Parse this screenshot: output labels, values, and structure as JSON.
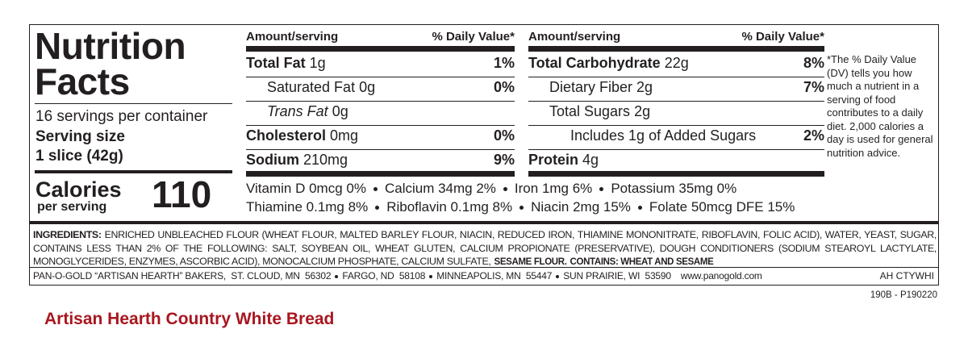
{
  "label": {
    "title_line1": "Nutrition",
    "title_line2": "Facts",
    "servings": "16 servings per container",
    "serving_size_label": "Serving size",
    "serving_size": "1 slice (42g)",
    "calories_label": "Calories",
    "calories_sub": "per serving",
    "calories": "110",
    "columns": [
      {
        "amount_header": "Amount/serving",
        "dv_header": "% Daily Value*",
        "rows": [
          {
            "name": "Total Fat",
            "amount": "1g",
            "dv": "1%",
            "bold": true,
            "indent": 0
          },
          {
            "name": "Saturated Fat",
            "amount": "0g",
            "dv": "0%",
            "bold": false,
            "indent": 1
          },
          {
            "name": "Trans Fat",
            "amount": "0g",
            "bold": false,
            "italic": true,
            "indent": 1
          },
          {
            "name": "Cholesterol",
            "amount": "0mg",
            "dv": "0%",
            "bold": true,
            "indent": 0
          },
          {
            "name": "Sodium",
            "amount": "210mg",
            "dv": "9%",
            "bold": true,
            "indent": 0
          }
        ]
      },
      {
        "amount_header": "Amount/serving",
        "dv_header": "% Daily Value*",
        "rows": [
          {
            "name": "Total Carbohydrate",
            "amount": "22g",
            "dv": "8%",
            "bold": true,
            "indent": 0
          },
          {
            "name": "Dietary Fiber",
            "amount": "2g",
            "dv": "7%",
            "bold": false,
            "indent": 1
          },
          {
            "name": "Total Sugars",
            "amount": "2g",
            "bold": false,
            "indent": 1
          },
          {
            "name": "Includes 1g of Added Sugars",
            "dv": "2%",
            "bold": false,
            "indent": 2
          },
          {
            "name": "Protein",
            "amount": "4g",
            "bold": true,
            "indent": 0
          }
        ]
      }
    ],
    "vitamins": [
      [
        "Vitamin D 0mcg 0%",
        "Calcium 34mg 2%",
        "Iron 1mg 6%",
        "Potassium 35mg 0%"
      ],
      [
        "Thiamine 0.1mg 8%",
        "Riboflavin 0.1mg 8%",
        "Niacin 2mg 15%",
        "Folate 50mcg DFE 15%"
      ]
    ],
    "footnote": "*The % Daily Value (DV) tells you how much a nutrient in a serving of food contributes to a daily diet. 2,000 calories a day is used for general nutrition advice."
  },
  "ingredients": {
    "label": "INGREDIENTS:",
    "text": "ENRICHED UNBLEACHED FLOUR (WHEAT FLOUR, MALTED BARLEY FLOUR, NIACIN, REDUCED IRON, THIAMINE MONONITRATE, RIBOFLAVIN, FOLIC ACID), WATER, YEAST, SUGAR, CONTAINS LESS THAN 2% OF THE FOLLOWING: SALT, SOYBEAN OIL, WHEAT GLUTEN, CALCIUM PROPIONATE (PRESERVATIVE), DOUGH CONDITIONERS (SODIUM STEAROYL LACTYLATE, MONOGLYCERIDES, ENZYMES, ASCORBIC ACID), MONOCALCIUM PHOSPHATE, CALCIUM SULFATE,",
    "sesame": "SESAME FLOUR.",
    "contains": "CONTAINS: WHEAT AND SESAME"
  },
  "manufacturer": {
    "segments": [
      "PAN-O-GOLD “ARTISAN HEARTH” BAKERS,  ST. CLOUD, MN  56302",
      "FARGO, ND  58108",
      "MINNEAPOLIS, MN  55447",
      "SUN PRAIRIE, WI  53590"
    ],
    "website": "www.panogold.com",
    "code": "AH CTYWHI"
  },
  "lot_code": "190B - P190220",
  "product_name": "Artisan Hearth Country White Bread"
}
